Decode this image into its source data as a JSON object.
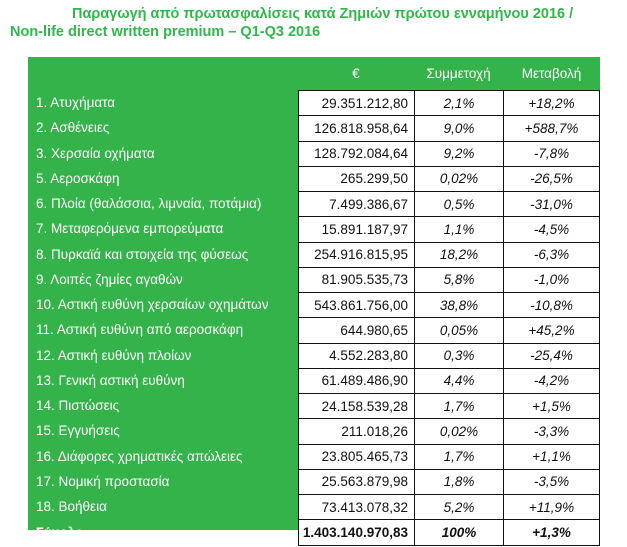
{
  "title": {
    "line1": "Παραγωγή από πρωτασφαλίσεις κατά Ζημιών πρώτου ενναμήνου 2016 /",
    "line2": "Non-life direct written premium – Q1-Q3 2016"
  },
  "table": {
    "headers": {
      "name": "",
      "eur": "€",
      "share": "Συμμετοχή",
      "change": "Μεταβολή"
    },
    "rows": [
      {
        "name": "1. Ατυχήματα",
        "eur": "29.351.212,80",
        "share": "2,1%",
        "change": "+18,2%"
      },
      {
        "name": "2. Ασθένειες",
        "eur": "126.818.958,64",
        "share": "9,0%",
        "change": "+588,7%"
      },
      {
        "name": "3. Χερσαία οχήματα",
        "eur": "128.792.084,64",
        "share": "9,2%",
        "change": "-7,8%"
      },
      {
        "name": "5. Αεροσκάφη",
        "eur": "265.299,50",
        "share": "0,02%",
        "change": "-26,5%"
      },
      {
        "name": "6. Πλοία (θαλάσσια, λιμναία, ποτάμια)",
        "eur": "7.499.386,67",
        "share": "0,5%",
        "change": "-31,0%"
      },
      {
        "name": "7. Μεταφερόμενα εμπορεύματα",
        "eur": "15.891.187,97",
        "share": "1,1%",
        "change": "-4,5%"
      },
      {
        "name": "8. Πυρκαϊά και στοιχεία της φύσεως",
        "eur": "254.916.815,95",
        "share": "18,2%",
        "change": "-6,3%"
      },
      {
        "name": "9. Λοιπές ζημίες αγαθών",
        "eur": "81.905.535,73",
        "share": "5,8%",
        "change": "-1,0%"
      },
      {
        "name": "10. Αστική ευθύνη χερσαίων οχημάτων",
        "eur": "543.861.756,00",
        "share": "38,8%",
        "change": "-10,8%"
      },
      {
        "name": "11. Αστική ευθύνη από αεροσκάφη",
        "eur": "644.980,65",
        "share": "0,05%",
        "change": "+45,2%"
      },
      {
        "name": "12. Αστική ευθύνη πλοίων",
        "eur": "4.552.283,80",
        "share": "0,3%",
        "change": "-25,4%"
      },
      {
        "name": "13. Γενική αστική ευθύνη",
        "eur": "61.489.486,90",
        "share": "4,4%",
        "change": "-4,2%"
      },
      {
        "name": "14. Πιστώσεις",
        "eur": "24.158.539,28",
        "share": "1,7%",
        "change": "+1,5%"
      },
      {
        "name": "15. Εγγυήσεις",
        "eur": "211.018,26",
        "share": "0,02%",
        "change": "-3,3%"
      },
      {
        "name": "16. Διάφορες χρηματικές απώλειες",
        "eur": "23.805.465,73",
        "share": "1,7%",
        "change": "+1,1%"
      },
      {
        "name": "17. Νομική προστασία",
        "eur": "25.563.879,98",
        "share": "1,8%",
        "change": "-3,5%"
      },
      {
        "name": "18. Βοήθεια",
        "eur": "73.413.078,32",
        "share": "5,2%",
        "change": "+11,9%"
      }
    ],
    "total": {
      "name": "Σύνολο",
      "eur": "1.403.140.970,83",
      "share": "100%",
      "change": "+1,3%"
    }
  },
  "colors": {
    "green": "#33b34a",
    "title_green": "#2fb84a"
  }
}
